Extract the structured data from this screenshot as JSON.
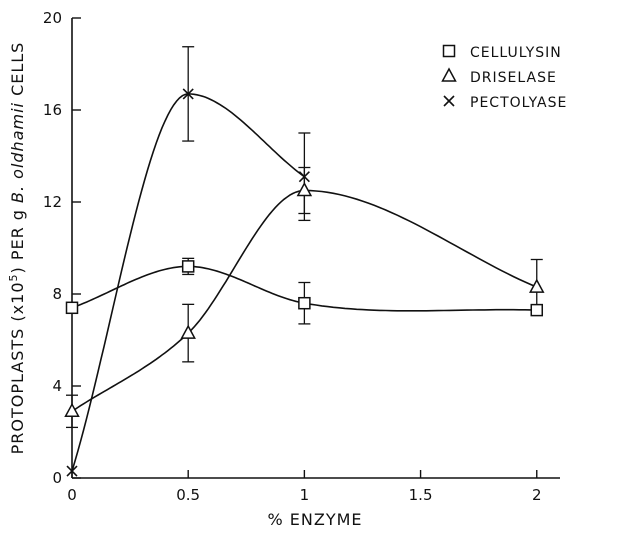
{
  "chart_data": {
    "type": "line",
    "xlabel": "% ENZYME",
    "ylabel_prefix": "PROTOPLASTS (x10",
    "ylabel_sup": "5",
    "ylabel_mid": ") PER g ",
    "ylabel_italic": "B. oldhamii",
    "ylabel_suffix": " CELLS",
    "xlim": [
      0,
      2.1
    ],
    "ylim": [
      0,
      20
    ],
    "x_ticks": [
      0,
      0.5,
      1,
      1.5,
      2
    ],
    "x_tick_labels": [
      "0",
      "0.5",
      "1",
      "1.5",
      "2"
    ],
    "y_ticks": [
      0,
      4,
      8,
      12,
      16,
      20
    ],
    "y_tick_labels": [
      "0",
      "4",
      "8",
      "12",
      "16",
      "20"
    ],
    "grid": false,
    "legend_position": "top-right",
    "series": [
      {
        "name": "CELLULYSIN",
        "marker": "square",
        "x": [
          0,
          0.5,
          1,
          2
        ],
        "y": [
          7.4,
          9.2,
          7.6,
          7.3
        ],
        "error": [
          null,
          0.35,
          0.9,
          null
        ]
      },
      {
        "name": "DRISELASE",
        "marker": "triangle",
        "x": [
          0,
          0.5,
          1,
          2
        ],
        "y": [
          2.9,
          6.3,
          12.5,
          8.3
        ],
        "error": [
          0.7,
          1.25,
          1.0,
          1.2
        ]
      },
      {
        "name": "PECTOLYASE",
        "marker": "x",
        "x": [
          0,
          0.5,
          1
        ],
        "y": [
          0.3,
          16.7,
          13.1
        ],
        "error": [
          null,
          2.05,
          1.9
        ]
      }
    ]
  }
}
